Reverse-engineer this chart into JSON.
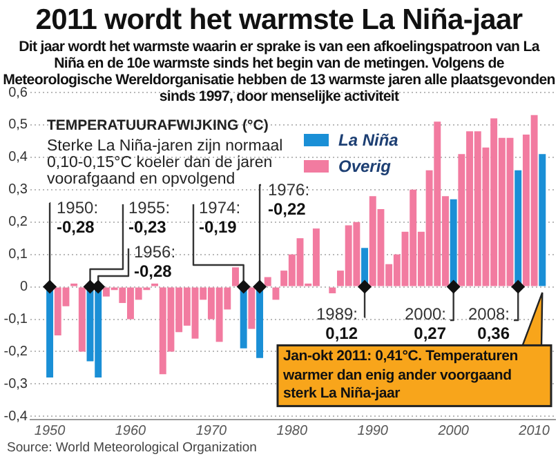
{
  "chart_data": {
    "type": "bar",
    "title": "2011 wordt het warmste La Niña-jaar",
    "subtitle": "Dit jaar wordt het warmste waarin er sprake is van een afkoelingspatroon van La Niña en de 10e warmste sinds het begin van de metingen. Volgens de Meteorologische Wereldorganisatie hebben de 13 warmste jaren alle plaatsgevonden sinds 1997, door menselijke activiteit",
    "ylabel": "TEMPERATUURAFWIJKING (°C)",
    "x": [
      1950,
      1951,
      1952,
      1953,
      1954,
      1955,
      1956,
      1957,
      1958,
      1959,
      1960,
      1961,
      1962,
      1963,
      1964,
      1965,
      1966,
      1967,
      1968,
      1969,
      1970,
      1971,
      1972,
      1973,
      1974,
      1975,
      1976,
      1977,
      1978,
      1979,
      1980,
      1981,
      1982,
      1983,
      1984,
      1985,
      1986,
      1987,
      1988,
      1989,
      1990,
      1991,
      1992,
      1993,
      1994,
      1995,
      1996,
      1997,
      1998,
      1999,
      2000,
      2001,
      2002,
      2003,
      2004,
      2005,
      2006,
      2007,
      2008,
      2009,
      2010,
      2011
    ],
    "series": [
      {
        "name": "La Niña",
        "color": "#1a8fd6",
        "values": [
          -0.28,
          null,
          null,
          null,
          null,
          -0.23,
          -0.28,
          null,
          null,
          null,
          null,
          null,
          null,
          null,
          null,
          null,
          null,
          null,
          null,
          null,
          null,
          null,
          null,
          null,
          -0.19,
          null,
          -0.22,
          null,
          null,
          null,
          null,
          null,
          null,
          null,
          null,
          null,
          null,
          null,
          null,
          0.12,
          null,
          null,
          null,
          null,
          null,
          null,
          null,
          null,
          null,
          null,
          0.27,
          null,
          null,
          null,
          null,
          null,
          null,
          null,
          0.36,
          null,
          null,
          0.41
        ]
      },
      {
        "name": "Overig",
        "color": "#f27ba0",
        "values": [
          null,
          -0.15,
          -0.06,
          0.01,
          -0.2,
          null,
          null,
          -0.03,
          -0.01,
          -0.05,
          -0.1,
          -0.04,
          -0.01,
          0.01,
          -0.27,
          -0.2,
          -0.14,
          -0.12,
          -0.16,
          -0.04,
          -0.1,
          -0.17,
          -0.07,
          0.06,
          null,
          -0.13,
          null,
          0.03,
          -0.04,
          0.05,
          0.1,
          0.15,
          0.01,
          0.18,
          0.0,
          -0.02,
          0.05,
          0.19,
          0.2,
          null,
          0.28,
          0.24,
          0.07,
          0.1,
          0.17,
          0.3,
          0.17,
          0.36,
          0.51,
          0.28,
          null,
          0.41,
          0.48,
          0.48,
          0.43,
          0.52,
          0.46,
          0.46,
          null,
          0.47,
          0.53,
          null
        ]
      }
    ],
    "xlim": [
      1947.6,
      2012.6
    ],
    "xticks": [
      1950,
      1960,
      1970,
      1980,
      1990,
      2000,
      2010
    ],
    "ylim": [
      -0.41,
      0.6
    ],
    "yticks": [
      {
        "value": -0.4,
        "label": "-0,4"
      },
      {
        "value": -0.3,
        "label": "-0,3"
      },
      {
        "value": -0.2,
        "label": "-0,2"
      },
      {
        "value": -0.1,
        "label": "-0,1"
      },
      0,
      {
        "value": 0.1,
        "label": "0,1"
      },
      {
        "value": 0.2,
        "label": "0,2"
      },
      {
        "value": 0.3,
        "label": "0,3"
      },
      {
        "value": 0.4,
        "label": "0,4"
      },
      {
        "value": 0.5,
        "label": "0,5"
      },
      {
        "value": 0.6,
        "label": "0,6"
      }
    ],
    "grid": "y",
    "legend": "top right",
    "annotations": [
      "Sterke La Niña-jaren zijn normaal 0,10-0,15°C koeler dan de jaren voorafgaand en opvolgend",
      {
        "text": "1950:\n-0,28",
        "x": 1950,
        "y": 0
      },
      {
        "text": "1955:\n-0,23",
        "x": 1955,
        "y": 0
      },
      {
        "text": "1956:\n-0,28",
        "x": 1956,
        "y": 0
      },
      {
        "text": "1974:\n-0,19",
        "x": 1974,
        "y": 0
      },
      {
        "text": "1976:\n-0,22",
        "x": 1976,
        "y": 0
      },
      {
        "text": "1989:\n0,12",
        "x": 1989,
        "y": 0
      },
      {
        "text": "2000:\n0,27",
        "x": 2000,
        "y": 0
      },
      {
        "text": "2008:\n0,36",
        "x": 2008,
        "y": 0
      },
      {
        "text": "Jan-okt 2011: 0,41°C. Temperaturen warmer dan enig ander voorgaand sterk La Niña-jaar",
        "x": 2011,
        "y": 0
      },
      "Source: World Meteorological Organization"
    ]
  }
}
